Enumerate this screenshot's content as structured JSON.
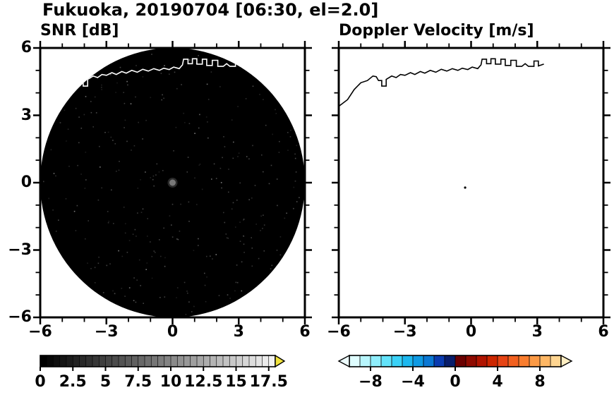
{
  "title": "Fukuoka, 20190704 [06:30, el=2.0]",
  "panels": {
    "left": {
      "title": "SNR [dB]"
    },
    "right": {
      "title": "Doppler Velocity [m/s]"
    }
  },
  "chart_data": [
    {
      "type": "heatmap",
      "name": "snr_ppi",
      "title": "SNR [dB]",
      "xlim": [
        -6,
        6
      ],
      "ylim": [
        -6,
        6
      ],
      "x_tick_values": [
        -6,
        -3,
        0,
        3,
        6
      ],
      "x_tick_labels": [
        "−6",
        "−3",
        "0",
        "3",
        "6"
      ],
      "y_tick_values": [
        -6,
        -3,
        0,
        3,
        6
      ],
      "y_tick_labels": [
        "−6",
        "−3",
        "0",
        "3",
        "6"
      ],
      "minor_tick_step": 1,
      "disk": {
        "center": [
          0,
          0
        ],
        "radius": 6,
        "color": "#000000",
        "note": "uniform low SNR scan"
      },
      "center_dot": {
        "x": 0,
        "y": 0,
        "color": "#787878"
      },
      "coastline_color": "#ffffff",
      "colorbar": {
        "min": 0,
        "max": 18,
        "segment_step": 0.5,
        "label_values": [
          0,
          2.5,
          5,
          7.5,
          10,
          12.5,
          15,
          17.5
        ],
        "labels": [
          "0",
          "2.5",
          "5",
          "7.5",
          "10",
          "12.5",
          "15",
          "17.5"
        ],
        "start_gray": 0,
        "end_gray": 242,
        "over_arrow_color": "#f0e23c"
      }
    },
    {
      "type": "heatmap",
      "name": "doppler_velocity_ppi",
      "title": "Doppler Velocity [m/s]",
      "xlim": [
        -6,
        6
      ],
      "ylim": [
        -6,
        6
      ],
      "x_tick_values": [
        -6,
        -3,
        0,
        3,
        6
      ],
      "x_tick_labels": [
        "−6",
        "−3",
        "0",
        "3",
        "6"
      ],
      "y_tick_values": [
        -6,
        -3,
        0,
        3,
        6
      ],
      "minor_tick_step": 1,
      "background": "#ffffff",
      "coastline_color": "#000000",
      "echo_dot": {
        "x": -0.27,
        "y": -0.22,
        "color": "#000000"
      },
      "colorbar": {
        "min": -10,
        "max": 10,
        "segment_step": 1,
        "label_values": [
          -8,
          -4,
          0,
          4,
          8
        ],
        "labels": [
          "−8",
          "−4",
          "0",
          "4",
          "8"
        ],
        "segment_colors": [
          "#dffdff",
          "#b8f6fd",
          "#8feefc",
          "#63e3fa",
          "#3bd2f7",
          "#1db8ef",
          "#0f9ae3",
          "#0b78d4",
          "#0a3bb0",
          "#081d6b",
          "#6b0000",
          "#8f0a00",
          "#b01400",
          "#cc2600",
          "#e64414",
          "#f2601f",
          "#f97d2e",
          "#fc9a45",
          "#feb765",
          "#ffd591"
        ],
        "under_arrow_color": "#eefeff",
        "over_arrow_color": "#ffeec2"
      }
    }
  ],
  "coastline_points": [
    [
      -6.0,
      3.4
    ],
    [
      -5.6,
      3.7
    ],
    [
      -5.3,
      4.15
    ],
    [
      -5.0,
      4.45
    ],
    [
      -4.7,
      4.55
    ],
    [
      -4.45,
      4.75
    ],
    [
      -4.3,
      4.72
    ],
    [
      -4.2,
      4.55
    ],
    [
      -4.05,
      4.55
    ],
    [
      -4.05,
      4.3
    ],
    [
      -3.85,
      4.3
    ],
    [
      -3.85,
      4.6
    ],
    [
      -3.6,
      4.75
    ],
    [
      -3.4,
      4.68
    ],
    [
      -3.2,
      4.82
    ],
    [
      -3.0,
      4.78
    ],
    [
      -2.75,
      4.9
    ],
    [
      -2.55,
      4.82
    ],
    [
      -2.3,
      4.95
    ],
    [
      -2.1,
      4.88
    ],
    [
      -1.85,
      5.0
    ],
    [
      -1.6,
      4.92
    ],
    [
      -1.35,
      5.05
    ],
    [
      -1.1,
      4.97
    ],
    [
      -0.85,
      5.08
    ],
    [
      -0.6,
      5.0
    ],
    [
      -0.4,
      5.1
    ],
    [
      -0.15,
      5.04
    ],
    [
      0.05,
      5.15
    ],
    [
      0.3,
      5.08
    ],
    [
      0.45,
      5.25
    ],
    [
      0.5,
      5.5
    ],
    [
      0.7,
      5.5
    ],
    [
      0.7,
      5.3
    ],
    [
      0.9,
      5.3
    ],
    [
      0.9,
      5.52
    ],
    [
      1.1,
      5.52
    ],
    [
      1.1,
      5.28
    ],
    [
      1.35,
      5.28
    ],
    [
      1.35,
      5.5
    ],
    [
      1.55,
      5.5
    ],
    [
      1.55,
      5.22
    ],
    [
      1.8,
      5.22
    ],
    [
      1.8,
      5.45
    ],
    [
      2.05,
      5.45
    ],
    [
      2.05,
      5.18
    ],
    [
      2.3,
      5.18
    ],
    [
      2.45,
      5.3
    ],
    [
      2.6,
      5.18
    ],
    [
      2.85,
      5.18
    ],
    [
      2.85,
      5.42
    ],
    [
      3.05,
      5.42
    ],
    [
      3.05,
      5.2
    ],
    [
      3.3,
      5.28
    ]
  ]
}
